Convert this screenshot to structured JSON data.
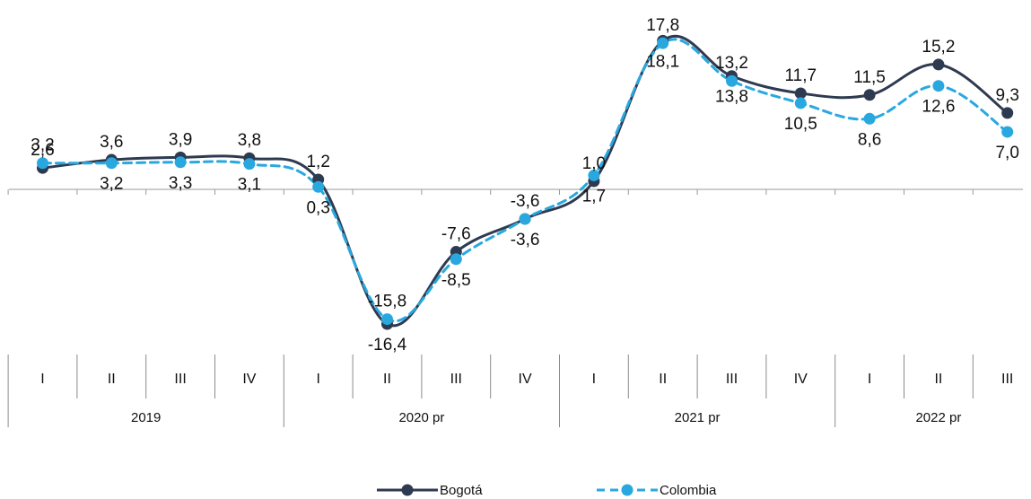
{
  "chart_data": {
    "type": "line",
    "x_groups": [
      {
        "label": "2019",
        "quarters": [
          "I",
          "II",
          "III",
          "IV"
        ]
      },
      {
        "label": "2020 pr",
        "quarters": [
          "I",
          "II",
          "III",
          "IV"
        ]
      },
      {
        "label": "2021 pr",
        "quarters": [
          "I",
          "II",
          "III",
          "IV"
        ]
      },
      {
        "label": "2022 pr",
        "quarters": [
          "I",
          "II",
          "III"
        ]
      }
    ],
    "series": [
      {
        "name": "Bogotá",
        "color": "#2e3a4f",
        "style": "solid",
        "values": [
          2.6,
          3.6,
          3.9,
          3.8,
          1.2,
          -16.4,
          -7.6,
          -3.6,
          1.0,
          18.1,
          13.8,
          11.7,
          11.5,
          15.2,
          9.3
        ],
        "labels": [
          "2,6",
          "3,6",
          "3,9",
          "3,8",
          "1,2",
          "-16,4",
          "-7,6",
          "-3,6",
          "1,0",
          "18,1",
          "13,8",
          "11,7",
          "11,5",
          "15,2",
          "9,3"
        ]
      },
      {
        "name": "Colombia",
        "color": "#29a8e0",
        "style": "dashed",
        "values": [
          3.2,
          3.2,
          3.3,
          3.1,
          0.3,
          -15.8,
          -8.5,
          -3.6,
          1.7,
          17.8,
          13.2,
          10.5,
          8.6,
          12.6,
          7.0
        ],
        "labels": [
          "3,2",
          "3,2",
          "3,3",
          "3,1",
          "0,3",
          "-15,8",
          "-8,5",
          "-3,6",
          "1,7",
          "17,8",
          "13,2",
          "10,5",
          "8,6",
          "12,6",
          "7,0"
        ]
      }
    ],
    "ylim": [
      -20,
      20
    ],
    "grid": false,
    "legend_position": "bottom-center"
  }
}
